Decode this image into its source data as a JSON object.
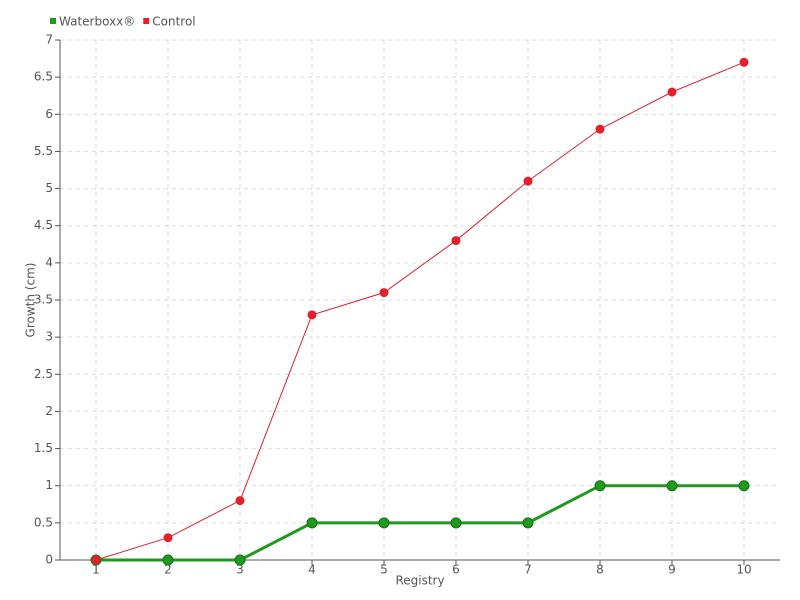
{
  "chart_data": {
    "type": "line",
    "x": [
      1,
      2,
      3,
      4,
      5,
      6,
      7,
      8,
      9,
      10
    ],
    "series": [
      {
        "name": "Waterboxx®",
        "color": "#1f9a1f",
        "values": [
          0,
          0,
          0,
          0.5,
          0.5,
          0.5,
          0.5,
          1,
          1,
          1
        ]
      },
      {
        "name": "Control",
        "color": "#e3202b",
        "values": [
          0,
          0.3,
          0.8,
          3.3,
          3.6,
          4.3,
          5.1,
          5.8,
          6.3,
          6.7
        ]
      }
    ],
    "x_label": "Registry",
    "y_label": "Growth (cm)",
    "xlim": [
      0.5,
      10.5
    ],
    "xticks": [
      1,
      2,
      3,
      4,
      5,
      6,
      7,
      8,
      9,
      10
    ],
    "ylim": [
      0,
      7
    ],
    "yticks": [
      0,
      0.5,
      1,
      1.5,
      2,
      2.5,
      3,
      3.5,
      4,
      4.5,
      5,
      5.5,
      6,
      6.5,
      7
    ],
    "grid": true,
    "legend": "top-left"
  }
}
